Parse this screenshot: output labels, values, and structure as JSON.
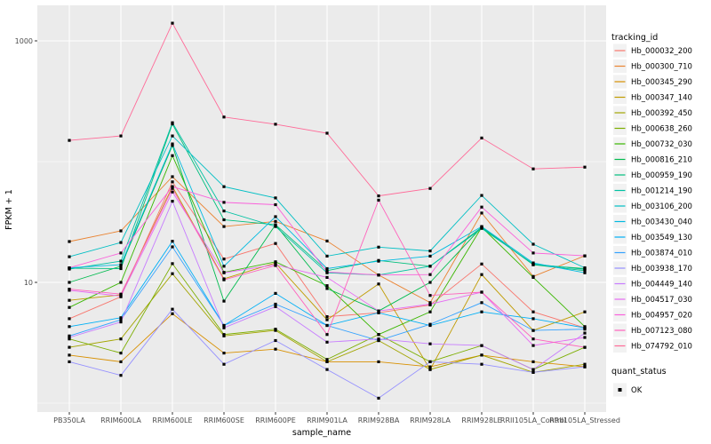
{
  "chart_data": {
    "type": "line",
    "title": "",
    "xlabel": "sample_name",
    "ylabel": "FPKM + 1",
    "y_scale": "log10",
    "y_ticks": [
      10,
      1000
    ],
    "y_minor_gridlines": [
      1,
      100
    ],
    "ylim": [
      1,
      1500
    ],
    "grid": true,
    "legend_position": "right",
    "x_categories": [
      "PB350LA",
      "RRIM600LA",
      "RRIM600LE",
      "RRIM600SE",
      "RRIM600PE",
      "RRIM901LA",
      "RRIM928BA",
      "RRIM928LA",
      "RRIM928LE",
      "RRII105LA_Control",
      "RRII105LA_Stressed"
    ],
    "series": [
      {
        "name": "Hb_000032_200",
        "color": "#F8766D",
        "values": [
          5.0,
          7.6,
          68,
          15.6,
          21,
          5.2,
          5.6,
          6.5,
          14.2,
          5.7,
          4.2
        ]
      },
      {
        "name": "Hb_000300_710",
        "color": "#EA8331",
        "values": [
          21.8,
          26.7,
          75,
          29,
          32,
          22,
          11.5,
          6.8,
          37.5,
          11.2,
          16.6
        ]
      },
      {
        "name": "Hb_000345_290",
        "color": "#D89000",
        "values": [
          2.5,
          2.2,
          5.5,
          2.6,
          2.8,
          2.2,
          2.2,
          2.0,
          2.5,
          2.2,
          2.0
        ]
      },
      {
        "name": "Hb_000347_140",
        "color": "#C09B00",
        "values": [
          7.1,
          7.9,
          62,
          10.7,
          14.5,
          4.9,
          9.7,
          1.9,
          11.6,
          4.0,
          5.7
        ]
      },
      {
        "name": "Hb_000392_450",
        "color": "#A3A500",
        "values": [
          2.9,
          3.4,
          11.8,
          3.6,
          4.0,
          2.2,
          3.3,
          1.9,
          2.5,
          1.8,
          2.1
        ]
      },
      {
        "name": "Hb_000638_260",
        "color": "#7CAE00",
        "values": [
          3.4,
          2.6,
          14.3,
          3.7,
          4.1,
          2.3,
          3.7,
          2.2,
          3.0,
          1.9,
          2.9
        ]
      },
      {
        "name": "Hb_000732_030",
        "color": "#39B600",
        "values": [
          6.2,
          10.0,
          112,
          12.1,
          14.8,
          9.4,
          3.7,
          5.7,
          28.6,
          11.0,
          4.3
        ]
      },
      {
        "name": "Hb_000816_210",
        "color": "#00BB4E",
        "values": [
          10.0,
          13.6,
          136,
          7.0,
          30,
          8.9,
          5.8,
          10.0,
          28.6,
          14.0,
          13.0
        ]
      },
      {
        "name": "Hb_000959_190",
        "color": "#00BF7D",
        "values": [
          13.1,
          13.0,
          205,
          33,
          30,
          12.5,
          15.2,
          13.6,
          28.6,
          14.0,
          12.5
        ]
      },
      {
        "name": "Hb_001214_190",
        "color": "#00C1A3",
        "values": [
          12.9,
          15.0,
          210,
          39,
          29,
          12.0,
          11.5,
          13.6,
          28.0,
          14.2,
          12.8
        ]
      },
      {
        "name": "Hb_003106_200",
        "color": "#00BFC4",
        "values": [
          16.3,
          21.4,
          163,
          62,
          50,
          16.5,
          19.6,
          18.2,
          52.5,
          20.7,
          13.2
        ]
      },
      {
        "name": "Hb_003430_040",
        "color": "#00BAE0",
        "values": [
          13.2,
          14.0,
          140,
          13.6,
          35,
          13.0,
          15.0,
          16.5,
          29,
          14.5,
          12.0
        ]
      },
      {
        "name": "Hb_003549_130",
        "color": "#00B0F6",
        "values": [
          4.3,
          5.1,
          21.9,
          4.4,
          8.1,
          4.4,
          5.6,
          4.4,
          5.7,
          5.0,
          4.2
        ]
      },
      {
        "name": "Hb_003874_010",
        "color": "#35A2FF",
        "values": [
          3.6,
          4.9,
          19.7,
          4.4,
          6.6,
          4.4,
          3.3,
          4.5,
          6.8,
          4.0,
          4.1
        ]
      },
      {
        "name": "Hb_003938_170",
        "color": "#9590FF",
        "values": [
          2.2,
          1.7,
          6.0,
          2.1,
          3.3,
          1.9,
          1.1,
          2.2,
          2.1,
          1.8,
          2.0
        ]
      },
      {
        "name": "Hb_004449_140",
        "color": "#C77CFF",
        "values": [
          3.5,
          4.7,
          47,
          4.2,
          6.3,
          3.2,
          3.4,
          3.1,
          3.0,
          1.9,
          3.8
        ]
      },
      {
        "name": "Hb_004517_030",
        "color": "#E76BF3",
        "values": [
          8.6,
          7.7,
          56,
          12.0,
          14.0,
          11.0,
          5.8,
          6.6,
          8.3,
          3.0,
          3.5
        ]
      },
      {
        "name": "Hb_004957_020",
        "color": "#FA62DB",
        "values": [
          13.2,
          17.5,
          62,
          46,
          44,
          12.2,
          11.5,
          11.6,
          42,
          17.5,
          16.6
        ]
      },
      {
        "name": "Hb_007123_080",
        "color": "#FF62BC",
        "values": [
          8.8,
          8.0,
          60,
          10.5,
          13.8,
          3.7,
          48,
          7.8,
          8.3,
          3.4,
          2.9
        ]
      },
      {
        "name": "Hb_074792_010",
        "color": "#FF6A98",
        "values": [
          150,
          163,
          1400,
          234,
          204,
          172,
          52,
          60,
          157,
          87,
          90
        ]
      }
    ]
  },
  "legend": {
    "tracking_title": "tracking_id",
    "quant_title": "quant_status",
    "quant_items": [
      {
        "label": "OK",
        "marker": "black-square"
      }
    ]
  },
  "colors": {
    "panel_bg": "#EBEBEB",
    "grid": "#FFFFFF",
    "axis_text": "#4D4D4D",
    "tick_mark": "#333333",
    "legend_key_bg": "#F2F2F2",
    "point": "#000000"
  }
}
